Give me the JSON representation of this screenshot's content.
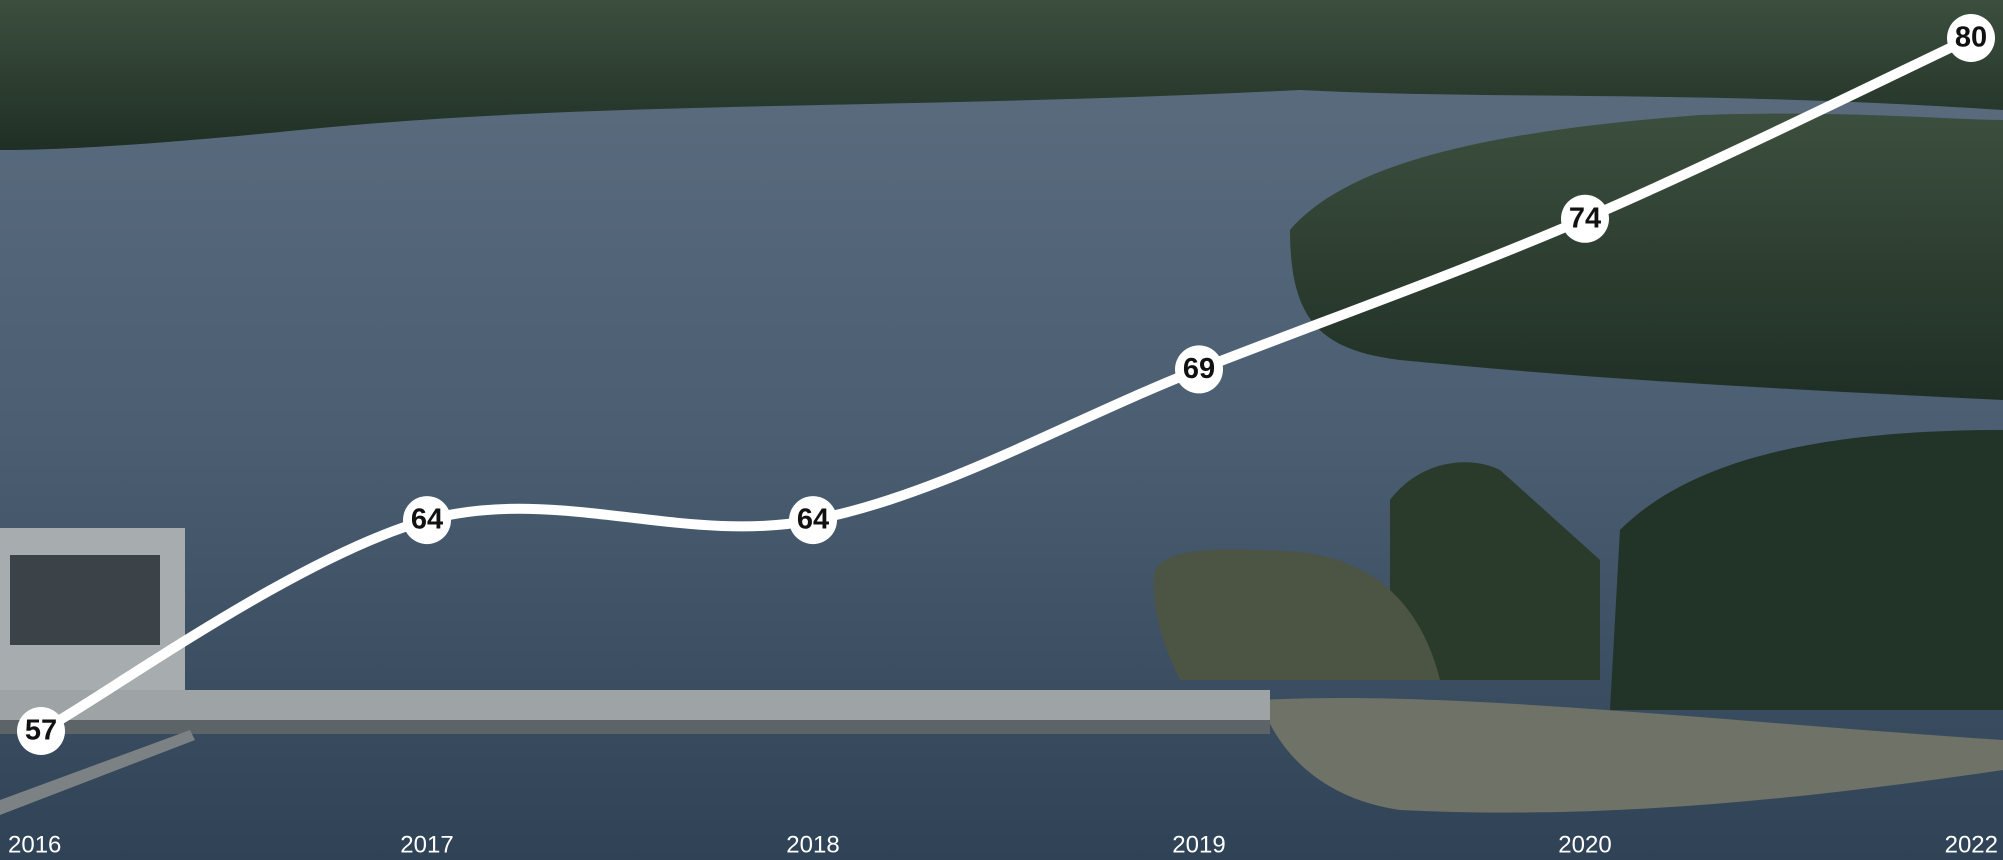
{
  "chart_data": {
    "type": "line",
    "categories": [
      "2016",
      "2017",
      "2018",
      "2019",
      "2020",
      "2022"
    ],
    "values": [
      57,
      64,
      64,
      69,
      74,
      80
    ],
    "color": "#ffffff",
    "ylim": [
      57,
      80
    ]
  }
}
